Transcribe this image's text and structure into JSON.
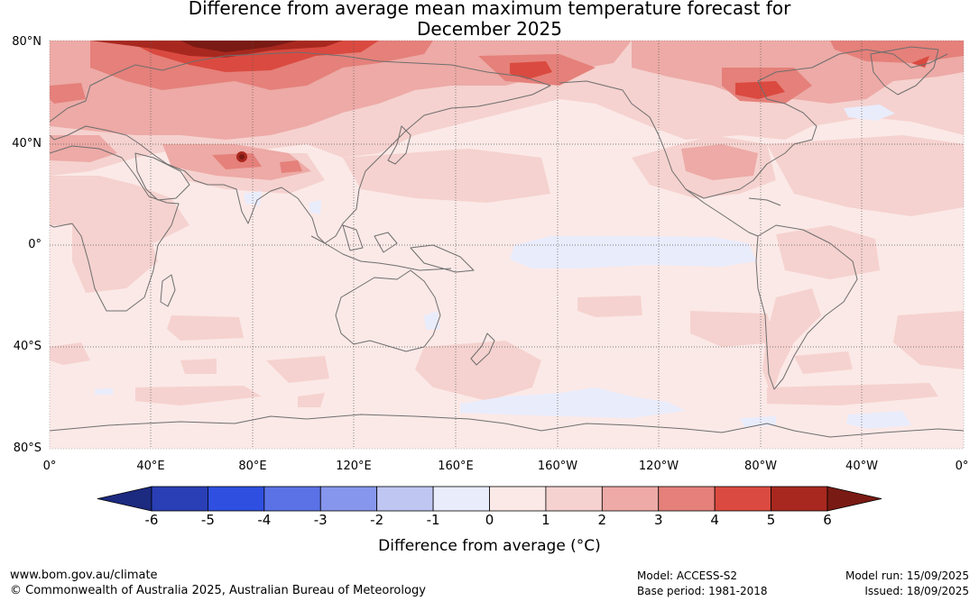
{
  "title": {
    "line1": "Difference from average mean maximum temperature forecast for",
    "line2": "December 2025"
  },
  "map": {
    "lat_labels": [
      "80°N",
      "40°N",
      "0°",
      "40°S",
      "80°S"
    ],
    "lon_labels": [
      "0°",
      "40°E",
      "80°E",
      "120°E",
      "160°E",
      "160°W",
      "120°W",
      "80°W",
      "40°W",
      "0°"
    ],
    "coastline_color": "#6e6e6e",
    "gridline_color": "#555555"
  },
  "legend": {
    "title": "Difference from average (°C)",
    "ticks": [
      "-6",
      "-5",
      "-4",
      "-3",
      "-2",
      "-1",
      "0",
      "1",
      "2",
      "3",
      "4",
      "5",
      "6"
    ],
    "colors": [
      "#1c2a80",
      "#2a3fb5",
      "#2f4fe0",
      "#5b72e6",
      "#8696ec",
      "#bfc6f2",
      "#e9ecfb",
      "#fbe9e7",
      "#f5d2cf",
      "#edaaa6",
      "#e5807a",
      "#da4a40",
      "#a8281f",
      "#7a1a14"
    ]
  },
  "footer": {
    "website": "www.bom.gov.au/climate",
    "copyright": "© Commonwealth of Australia 2025, Australian Bureau of Meteorology",
    "model": "Model: ACCESS-S2",
    "base_period": "Base period: 1981-2018",
    "model_run": "Model run: 15/09/2025",
    "issued": "Issued: 18/09/2025"
  }
}
